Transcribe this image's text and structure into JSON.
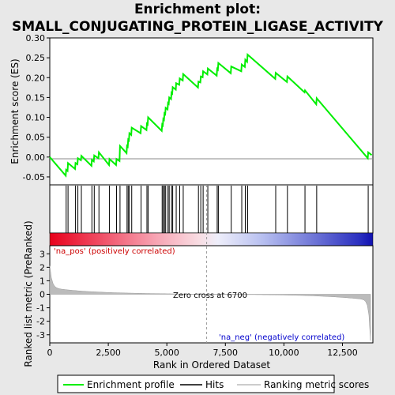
{
  "chart_data": {
    "type": "line",
    "title_line1": "Enrichment plot:",
    "title_line2": "SMALL_CONJUGATING_PROTEIN_LIGASE_ACTIVITY",
    "ylabel_top": "Enrichment score (ES)",
    "ylabel_bottom": "Ranked list metric (PreRanked)",
    "xlabel": "Rank in Ordered Dataset",
    "xlim": [
      0,
      13800
    ],
    "ylim_top": [
      -0.07,
      0.3
    ],
    "ylim_bottom": [
      -3.6,
      3.6
    ],
    "x_ticks": [
      0,
      2500,
      5000,
      7500,
      10000,
      12500
    ],
    "x_tick_labels": [
      "0",
      "2,500",
      "5,000",
      "7,500",
      "10,000",
      "12,500"
    ],
    "y_ticks_top": [
      -0.05,
      0.0,
      0.05,
      0.1,
      0.15,
      0.2,
      0.25,
      0.3
    ],
    "y_tick_labels_top": [
      "-0.05",
      "0.00",
      "0.05",
      "0.10",
      "0.15",
      "0.20",
      "0.25",
      "0.30"
    ],
    "y_ticks_bottom": [
      -3,
      -2,
      -1,
      0,
      1,
      2,
      3
    ],
    "y_tick_labels_bottom": [
      "-3",
      "-2",
      "-1",
      "0",
      "1",
      "2",
      "3"
    ],
    "annotations": {
      "pos": "'na_pos' (positively correlated)",
      "neg": "'na_neg' (negatively correlated)",
      "zero": "Zero cross at 6700"
    },
    "zero_cross": 6700,
    "legend": {
      "position": "bottom",
      "items": [
        {
          "label": "Enrichment profile",
          "color": "#00ee00"
        },
        {
          "label": "Hits",
          "color": "#000000"
        },
        {
          "label": "Ranking metric scores",
          "color": "#bbbbbb"
        }
      ]
    },
    "hits": [
      700,
      780,
      1100,
      1200,
      1350,
      1800,
      1900,
      2100,
      2550,
      2850,
      3000,
      3300,
      3350,
      3400,
      3500,
      3900,
      4150,
      4200,
      4800,
      4850,
      4900,
      4950,
      5050,
      5100,
      5200,
      5250,
      5400,
      5550,
      5700,
      6350,
      6450,
      6550,
      6750,
      7150,
      7200,
      7750,
      8200,
      8350,
      8450,
      9650,
      10150,
      10900,
      11400,
      13600
    ],
    "es_profile": {
      "x": [
        0,
        680,
        700,
        760,
        780,
        1080,
        1100,
        1180,
        1200,
        1330,
        1350,
        1780,
        1800,
        1880,
        1900,
        2080,
        2100,
        2530,
        2550,
        2830,
        2850,
        2980,
        3000,
        3280,
        3300,
        3330,
        3350,
        3380,
        3400,
        3480,
        3500,
        3880,
        3900,
        4130,
        4150,
        4180,
        4200,
        4780,
        4800,
        4830,
        4850,
        4880,
        4900,
        4930,
        4950,
        5030,
        5050,
        5080,
        5100,
        5180,
        5200,
        5230,
        5250,
        5380,
        5400,
        5530,
        5550,
        5680,
        5700,
        6330,
        6350,
        6430,
        6450,
        6530,
        6550,
        6730,
        6750,
        7130,
        7150,
        7180,
        7200,
        7730,
        7750,
        8180,
        8200,
        8330,
        8350,
        8430,
        8450,
        9630,
        9650,
        10130,
        10150,
        10880,
        10900,
        11380,
        11400,
        13580,
        13600,
        13750
      ],
      "y": [
        0.0,
        -0.047,
        -0.032,
        -0.035,
        -0.015,
        -0.03,
        -0.015,
        -0.018,
        -0.003,
        -0.008,
        0.003,
        -0.022,
        -0.007,
        -0.011,
        0.004,
        -0.003,
        0.012,
        -0.02,
        -0.005,
        -0.02,
        -0.005,
        -0.01,
        0.028,
        0.01,
        0.028,
        0.026,
        0.044,
        0.042,
        0.06,
        0.056,
        0.074,
        0.06,
        0.078,
        0.068,
        0.084,
        0.082,
        0.1,
        0.066,
        0.082,
        0.08,
        0.096,
        0.094,
        0.11,
        0.108,
        0.124,
        0.12,
        0.136,
        0.134,
        0.15,
        0.146,
        0.162,
        0.16,
        0.176,
        0.17,
        0.186,
        0.182,
        0.198,
        0.193,
        0.209,
        0.175,
        0.19,
        0.188,
        0.203,
        0.201,
        0.216,
        0.208,
        0.223,
        0.205,
        0.222,
        0.22,
        0.237,
        0.211,
        0.228,
        0.216,
        0.233,
        0.227,
        0.245,
        0.24,
        0.258,
        0.197,
        0.212,
        0.189,
        0.203,
        0.163,
        0.168,
        0.133,
        0.148,
        -0.003,
        0.012,
        0.005
      ]
    },
    "series_names": [
      "Enrichment profile",
      "Ranking metric scores"
    ]
  }
}
